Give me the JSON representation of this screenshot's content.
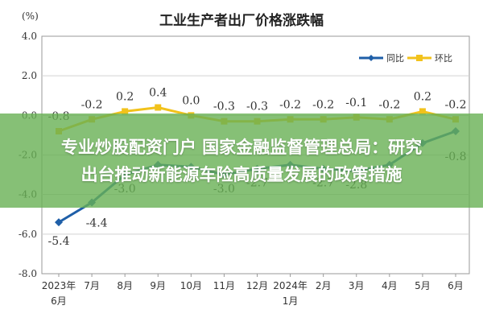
{
  "chart_data": {
    "type": "line",
    "title": "工业生产者出厂价格涨跌幅",
    "unit": "(%)",
    "ylim": [
      -8.0,
      4.0
    ],
    "yticks": [
      "4.0",
      "2.0",
      "0.0",
      "-2.0",
      "-4.0",
      "-6.0",
      "-8.0"
    ],
    "categories": [
      [
        "2023年",
        "6月"
      ],
      [
        "7月"
      ],
      [
        "8月"
      ],
      [
        "9月"
      ],
      [
        "10月"
      ],
      [
        "11月"
      ],
      [
        "12月"
      ],
      [
        "2024年",
        "1月"
      ],
      [
        "2月"
      ],
      [
        "3月"
      ],
      [
        "4月"
      ],
      [
        "5月"
      ],
      [
        "6月"
      ]
    ],
    "series": [
      {
        "name": "同比",
        "color": "#1f5fa8",
        "values": [
          -5.4,
          -4.4,
          -3.0,
          -2.5,
          -2.6,
          -3.0,
          -2.7,
          -2.5,
          -2.7,
          -2.8,
          -2.5,
          -1.4,
          -0.8
        ],
        "labels": [
          "-5.4",
          "-4.4",
          "-3.0",
          "",
          "",
          "-3.0",
          "-2.7",
          "",
          "-2.7",
          "-2.8",
          "",
          "",
          "-0.8"
        ]
      },
      {
        "name": "环比",
        "color": "#f2c21b",
        "values": [
          -0.8,
          -0.2,
          0.2,
          0.4,
          0.0,
          -0.3,
          -0.3,
          -0.2,
          -0.2,
          -0.1,
          -0.2,
          0.2,
          -0.2
        ],
        "labels": [
          "-0.8",
          "-0.2",
          "0.2",
          "0.4",
          "0.0",
          "-0.3",
          "-0.3",
          "-0.2",
          "-0.2",
          "-0.1",
          "-0.2",
          "0.2",
          "-0.2"
        ]
      }
    ],
    "grid": true,
    "legend_position": "top-right"
  },
  "overlay": {
    "line1": "专业炒股配资门户 国家金融监督管理总局：研究",
    "line2": "出台推动新能源车险高质量发展的政策措施",
    "color": "#68b054"
  }
}
